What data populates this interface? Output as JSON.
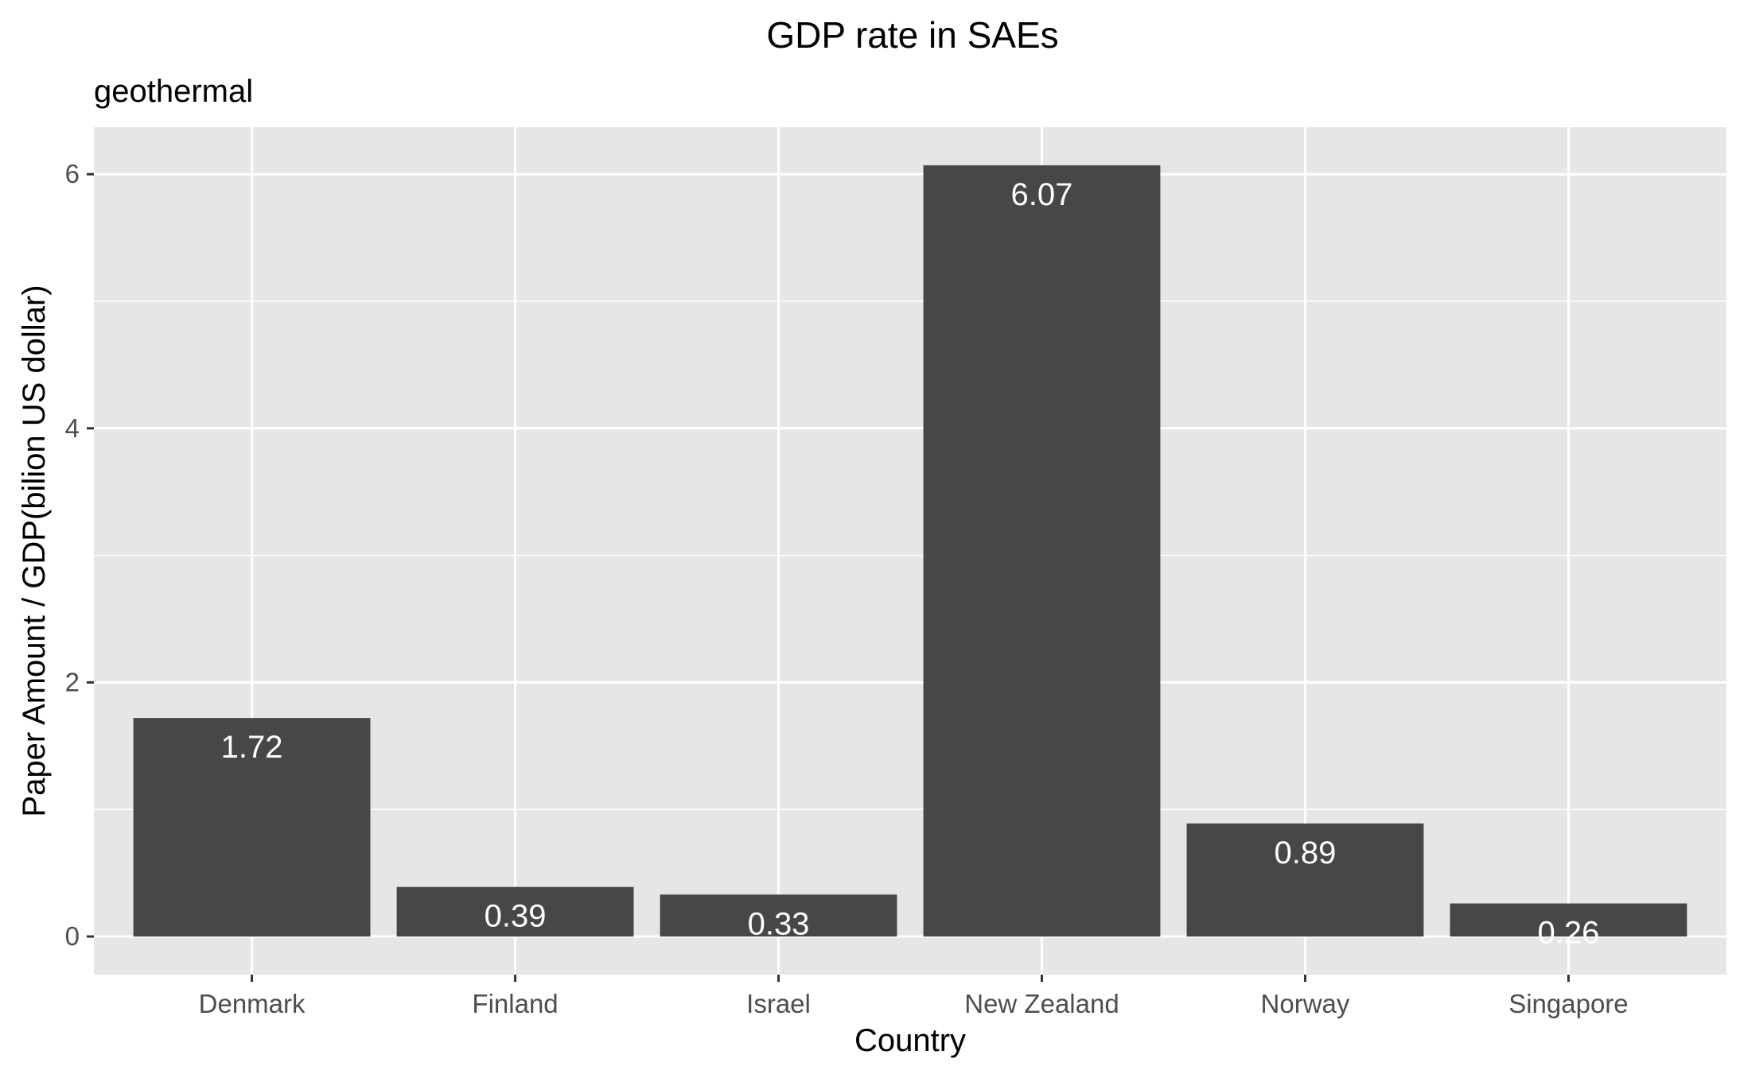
{
  "chart_data": {
    "type": "bar",
    "title": "GDP rate in SAEs",
    "subtitle": "geothermal",
    "xlabel": "Country",
    "ylabel": "Paper Amount / GDP(bilion US dollar)",
    "categories": [
      "Denmark",
      "Finland",
      "Israel",
      "New Zealand",
      "Norway",
      "Singapore"
    ],
    "values": [
      1.72,
      0.39,
      0.33,
      6.07,
      0.89,
      0.26
    ],
    "value_labels": [
      "1.72",
      "0.39",
      "0.33",
      "6.07",
      "0.89",
      "0.26"
    ],
    "ylim": [
      -0.3,
      6.37
    ],
    "yticks": [
      0,
      2,
      4,
      6
    ],
    "ytick_labels": [
      "0",
      "2",
      "4",
      "6"
    ],
    "grid": true,
    "legend": "none",
    "colors": {
      "bar": "#474747",
      "panel": "#e6e6e6",
      "grid": "#ffffff",
      "data_label": "#ffffff"
    }
  }
}
